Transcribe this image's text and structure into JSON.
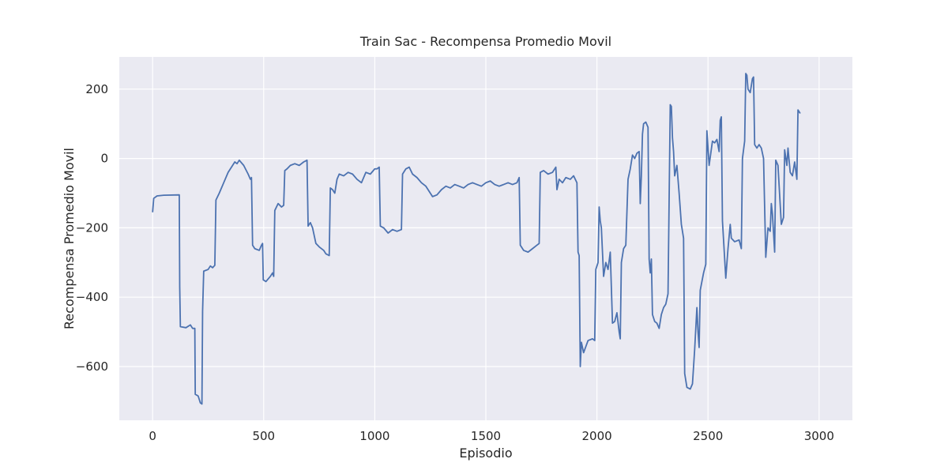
{
  "chart_data": {
    "type": "line",
    "title": "Train Sac - Recompensa Promedio Movil",
    "xlabel": "Episodio",
    "ylabel": "Recompensa Promedio Movil",
    "color": "#4c72b0",
    "grid": true,
    "xlim": [
      -150,
      3150
    ],
    "ylim": [
      -755,
      293
    ],
    "xticks": [
      0,
      500,
      1000,
      1500,
      2000,
      2500,
      3000
    ],
    "yticks": [
      {
        "value": -600,
        "label": "−600"
      },
      {
        "value": -400,
        "label": "−400"
      },
      {
        "value": -200,
        "label": "−200"
      },
      0,
      200
    ],
    "x": [
      0,
      5,
      20,
      50,
      120,
      122,
      125,
      150,
      170,
      180,
      190,
      192,
      205,
      215,
      222,
      225,
      230,
      250,
      260,
      270,
      280,
      285,
      300,
      320,
      340,
      360,
      370,
      380,
      390,
      410,
      430,
      440,
      445,
      450,
      460,
      480,
      490,
      495,
      498,
      510,
      530,
      540,
      545,
      550,
      565,
      580,
      590,
      595,
      605,
      620,
      640,
      660,
      680,
      695,
      700,
      710,
      720,
      735,
      750,
      770,
      780,
      795,
      800,
      810,
      820,
      830,
      840,
      860,
      880,
      900,
      920,
      940,
      960,
      980,
      1000,
      1010,
      1020,
      1025,
      1040,
      1060,
      1080,
      1100,
      1120,
      1125,
      1140,
      1155,
      1170,
      1190,
      1210,
      1230,
      1250,
      1260,
      1280,
      1300,
      1320,
      1340,
      1360,
      1380,
      1400,
      1420,
      1440,
      1460,
      1480,
      1500,
      1520,
      1540,
      1560,
      1580,
      1600,
      1620,
      1640,
      1650,
      1655,
      1670,
      1690,
      1710,
      1730,
      1740,
      1745,
      1760,
      1780,
      1800,
      1815,
      1820,
      1830,
      1845,
      1860,
      1880,
      1895,
      1910,
      1915,
      1920,
      1925,
      1930,
      1940,
      1960,
      1980,
      1990,
      1995,
      2000,
      2005,
      2010,
      2015,
      2020,
      2030,
      2040,
      2050,
      2060,
      2070,
      2080,
      2090,
      2100,
      2105,
      2110,
      2120,
      2130,
      2140,
      2150,
      2160,
      2170,
      2180,
      2190,
      2195,
      2200,
      2205,
      2210,
      2220,
      2230,
      2235,
      2240,
      2245,
      2250,
      2260,
      2270,
      2280,
      2290,
      2300,
      2310,
      2320,
      2330,
      2335,
      2340,
      2345,
      2350,
      2360,
      2370,
      2380,
      2390,
      2395,
      2405,
      2420,
      2430,
      2440,
      2450,
      2455,
      2460,
      2465,
      2480,
      2490,
      2495,
      2505,
      2520,
      2530,
      2540,
      2550,
      2555,
      2560,
      2565,
      2580,
      2590,
      2600,
      2605,
      2620,
      2640,
      2650,
      2655,
      2665,
      2670,
      2675,
      2680,
      2690,
      2700,
      2705,
      2710,
      2720,
      2730,
      2740,
      2750,
      2760,
      2770,
      2780,
      2785,
      2790,
      2800,
      2805,
      2815,
      2830,
      2840,
      2845,
      2855,
      2860,
      2870,
      2880,
      2890,
      2900,
      2905,
      2915
    ],
    "values": [
      -155,
      -115,
      -108,
      -106,
      -105,
      -370,
      -485,
      -488,
      -480,
      -490,
      -490,
      -680,
      -685,
      -705,
      -708,
      -440,
      -325,
      -320,
      -310,
      -315,
      -308,
      -120,
      -100,
      -70,
      -40,
      -20,
      -10,
      -15,
      -5,
      -20,
      -45,
      -60,
      -55,
      -250,
      -260,
      -265,
      -250,
      -245,
      -350,
      -355,
      -340,
      -330,
      -340,
      -150,
      -130,
      -140,
      -135,
      -35,
      -30,
      -20,
      -15,
      -20,
      -10,
      -5,
      -195,
      -185,
      -200,
      -245,
      -255,
      -265,
      -275,
      -280,
      -85,
      -90,
      -100,
      -60,
      -45,
      -50,
      -40,
      -45,
      -60,
      -70,
      -40,
      -45,
      -30,
      -30,
      -25,
      -195,
      -200,
      -215,
      -205,
      -210,
      -205,
      -45,
      -30,
      -25,
      -45,
      -55,
      -70,
      -80,
      -100,
      -110,
      -105,
      -90,
      -80,
      -85,
      -75,
      -80,
      -85,
      -75,
      -70,
      -75,
      -80,
      -70,
      -65,
      -75,
      -80,
      -75,
      -70,
      -75,
      -70,
      -55,
      -250,
      -265,
      -270,
      -260,
      -250,
      -245,
      -40,
      -35,
      -45,
      -40,
      -25,
      -90,
      -60,
      -70,
      -55,
      -60,
      -50,
      -70,
      -270,
      -280,
      -600,
      -530,
      -560,
      -525,
      -520,
      -525,
      -320,
      -310,
      -300,
      -140,
      -180,
      -200,
      -340,
      -300,
      -320,
      -270,
      -475,
      -470,
      -445,
      -500,
      -520,
      -300,
      -260,
      -250,
      -60,
      -30,
      10,
      0,
      15,
      20,
      -130,
      -50,
      70,
      100,
      105,
      90,
      -290,
      -330,
      -290,
      -450,
      -470,
      -475,
      -490,
      -450,
      -430,
      -420,
      -390,
      155,
      150,
      60,
      20,
      -50,
      -20,
      -100,
      -190,
      -230,
      -620,
      -660,
      -665,
      -650,
      -550,
      -430,
      -500,
      -545,
      -380,
      -330,
      -305,
      80,
      -20,
      50,
      45,
      55,
      20,
      110,
      120,
      -180,
      -345,
      -260,
      -190,
      -230,
      -240,
      -235,
      -260,
      0,
      50,
      245,
      240,
      200,
      190,
      230,
      235,
      40,
      30,
      40,
      30,
      0,
      -285,
      -200,
      -210,
      -130,
      -160,
      -270,
      -5,
      -20,
      -190,
      -170,
      25,
      -20,
      30,
      -40,
      -50,
      -10,
      -60,
      140,
      130
    ]
  }
}
